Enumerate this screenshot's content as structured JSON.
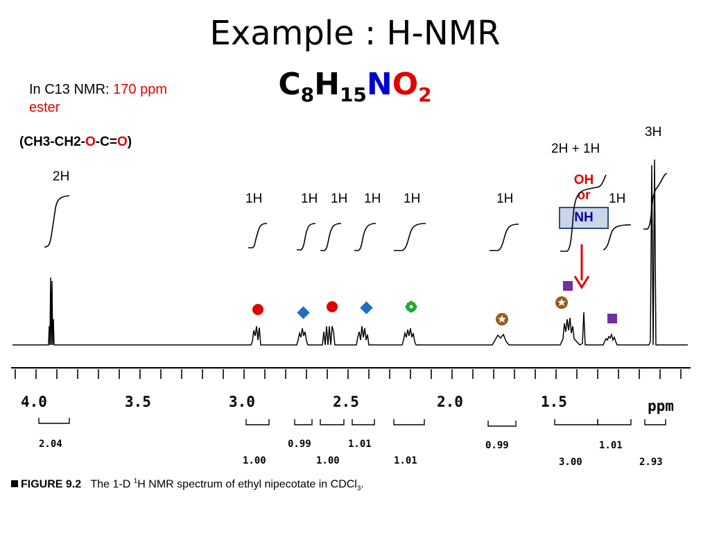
{
  "title": "Example : H-NMR",
  "formula": {
    "c": "C",
    "c_n": "8",
    "h": "H",
    "h_n": "15",
    "n": "N",
    "o": "O",
    "o_n": "2"
  },
  "c13_note": {
    "prefix": "In C13 NMR: ",
    "value": "170 ppm",
    "line2": "ester"
  },
  "fragment": {
    "p1": "(CH3-CH2-",
    "o1": "O",
    "p2": "-C=",
    "o2": "O",
    "p3": ")"
  },
  "h_labels": [
    "2H",
    "1H",
    "1H",
    "1H",
    "1H",
    "1H",
    "1H",
    "1H",
    "2H + 1H",
    "3H"
  ],
  "oh_nh": {
    "oh": "OH",
    "or": "or",
    "nh": "NH"
  },
  "axis": {
    "ticks": [
      "4.0",
      "3.5",
      "3.0",
      "2.5",
      "2.0",
      "1.5"
    ],
    "unit": "ppm"
  },
  "integrations_top": [
    "2.04",
    "0.99",
    "1.01",
    "0.99",
    "1.01"
  ],
  "integrations_bottom": [
    "1.00",
    "1.00",
    "1.01",
    "3.00",
    "2.93"
  ],
  "caption": {
    "figure": "FIGURE 9.2",
    "text_pre": "The 1-D ",
    "sup": "1",
    "text_post": "H NMR spectrum of ethyl nipecotate in CDCl",
    "sub": "3",
    "end": "."
  },
  "colors": {
    "red": "#e00000",
    "blue": "#1f6fc0",
    "green": "#22a832",
    "brown": "#9a5a1a",
    "purple": "#7030a0"
  },
  "markers": [
    "red-circle",
    "blue-diamond",
    "red-circle",
    "blue-diamond",
    "green-flower",
    "brown-star",
    "brown-star",
    "purple-square",
    "purple-square"
  ]
}
